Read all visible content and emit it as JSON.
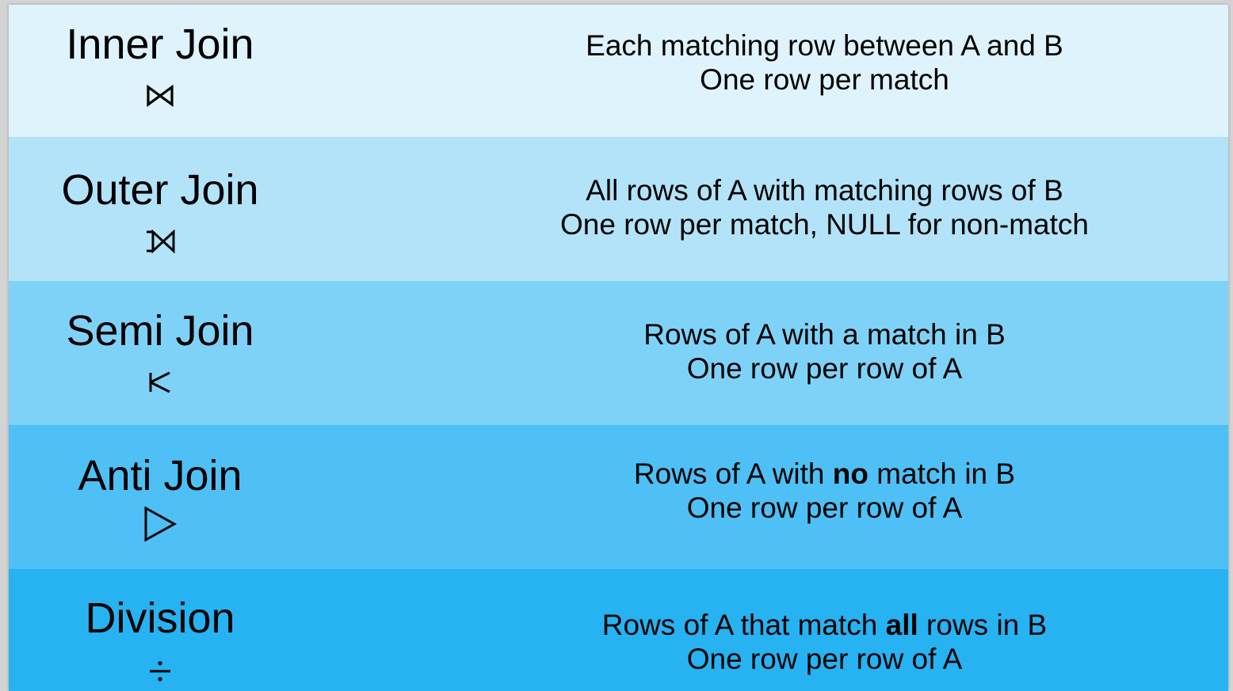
{
  "colors": {
    "row_backgrounds": [
      "#dff3fc",
      "#b2e3f9",
      "#7fd2f7",
      "#4ec0f5",
      "#27b2f2"
    ]
  },
  "rows": [
    {
      "name": "Inner Join",
      "symbol": "⋈",
      "symbol_icon": "bowtie-join-icon",
      "line1": "Each matching row between A and B",
      "line2": "One row per match"
    },
    {
      "name": "Outer Join",
      "symbol": "⟕",
      "symbol_icon": "outer-join-icon",
      "line1": "All rows of A with matching rows of B",
      "line2": "One row per match, NULL for non-match"
    },
    {
      "name": "Semi Join",
      "symbol": "⋉",
      "symbol_icon": "semi-join-icon",
      "line1": "Rows of A with a match in B",
      "line2": "One row per row of A"
    },
    {
      "name": "Anti Join",
      "symbol": "▷",
      "symbol_icon": "anti-join-triangle-icon",
      "line1_pre": "Rows of A with ",
      "line1_bold": "no",
      "line1_post": " match in B",
      "line2": "One row per row of A"
    },
    {
      "name": "Division",
      "symbol": "÷",
      "symbol_icon": "division-icon",
      "line1_pre": "Rows of A that match ",
      "line1_bold": "all",
      "line1_post": " rows in B",
      "line2": "One row per row of A"
    }
  ]
}
